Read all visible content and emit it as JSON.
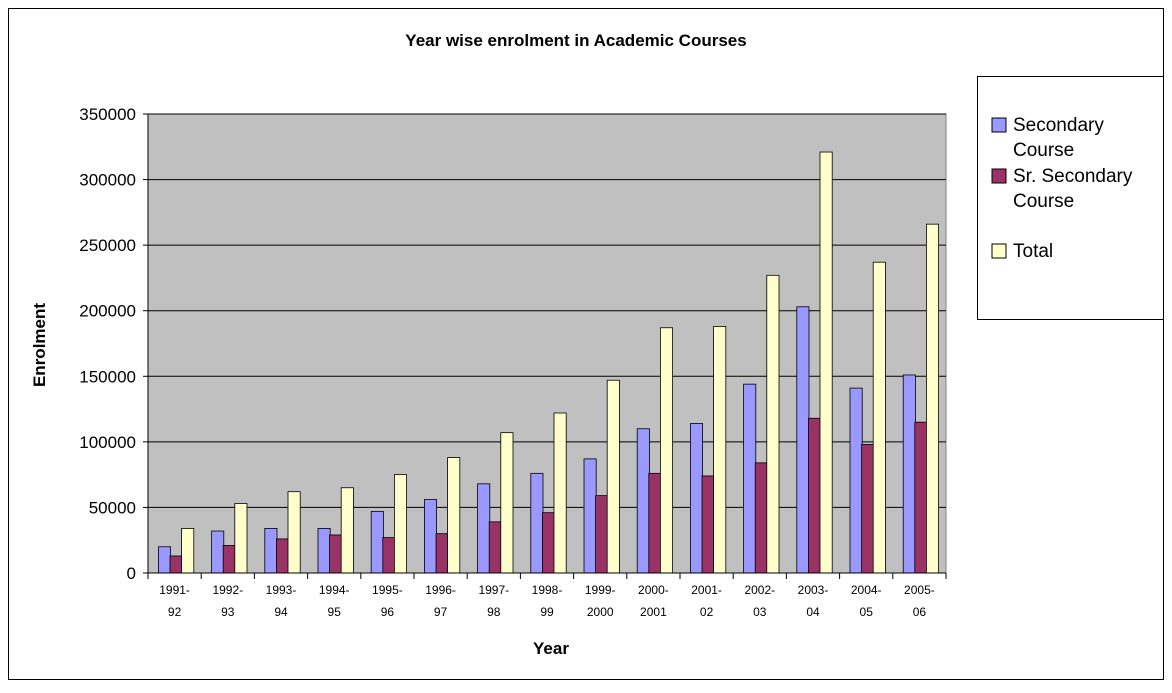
{
  "chart_data": {
    "type": "bar",
    "title": "Year wise enrolment in Academic Courses",
    "xlabel": "Year",
    "ylabel": "Enrolment",
    "ylim": [
      0,
      350000
    ],
    "yticks": [
      0,
      50000,
      100000,
      150000,
      200000,
      250000,
      300000,
      350000
    ],
    "grid": true,
    "legend_position": "right",
    "categories": [
      [
        "1991-",
        "92"
      ],
      [
        "1992-",
        "93"
      ],
      [
        "1993-",
        "94"
      ],
      [
        "1994-",
        "95"
      ],
      [
        "1995-",
        "96"
      ],
      [
        "1996-",
        "97"
      ],
      [
        "1997-",
        "98"
      ],
      [
        "1998-",
        "99"
      ],
      [
        "1999-",
        "2000"
      ],
      [
        "2000-",
        "2001"
      ],
      [
        "2001-",
        "02"
      ],
      [
        "2002-",
        "03"
      ],
      [
        "2003-",
        "04"
      ],
      [
        "2004-",
        "05"
      ],
      [
        "2005-",
        "06"
      ]
    ],
    "series": [
      {
        "name": [
          "Secondary",
          "Course"
        ],
        "color": "#9999ff",
        "values": [
          20000,
          32000,
          34000,
          34000,
          47000,
          56000,
          68000,
          76000,
          87000,
          110000,
          114000,
          144000,
          203000,
          141000,
          151000
        ]
      },
      {
        "name": [
          "Sr. Secondary",
          "Course"
        ],
        "color": "#993366",
        "values": [
          13000,
          21000,
          26000,
          29000,
          27000,
          30000,
          39000,
          46000,
          59000,
          76000,
          74000,
          84000,
          118000,
          98000,
          115000
        ]
      },
      {
        "name": [
          "Total"
        ],
        "color": "#ffffcc",
        "values": [
          34000,
          53000,
          62000,
          65000,
          75000,
          88000,
          107000,
          122000,
          147000,
          187000,
          188000,
          227000,
          321000,
          237000,
          266000
        ]
      }
    ],
    "colors": {
      "plot_background": "#c0c0c0",
      "gridline": "#000000",
      "bar_outline": "#000000"
    }
  }
}
